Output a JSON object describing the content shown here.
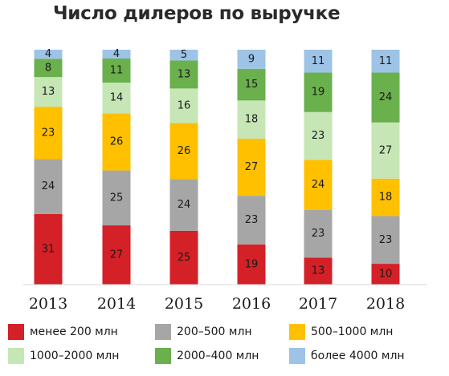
{
  "chart_data": {
    "type": "bar",
    "stacked": true,
    "title": "Число дилеров по выручке",
    "categories": [
      "2013",
      "2014",
      "2015",
      "2016",
      "2017",
      "2018"
    ],
    "series": [
      {
        "name": "менее 200 млн",
        "color": "#d42027",
        "values": [
          31,
          27,
          25,
          19,
          13,
          10
        ]
      },
      {
        "name": "200–500 млн",
        "color": "#a6a6a6",
        "values": [
          24,
          25,
          24,
          23,
          23,
          23
        ]
      },
      {
        "name": "500–1000 млн",
        "color": "#ffc000",
        "values": [
          23,
          26,
          26,
          27,
          24,
          18
        ]
      },
      {
        "name": "1000–2000 млн",
        "color": "#c7e6b5",
        "values": [
          13,
          14,
          16,
          18,
          23,
          27
        ]
      },
      {
        "name": "2000–400 млн",
        "color": "#6ab04c",
        "values": [
          8,
          11,
          13,
          15,
          19,
          24
        ]
      },
      {
        "name": "более 4000 млн",
        "color": "#9dc3e6",
        "values": [
          4,
          4,
          5,
          9,
          11,
          11
        ]
      }
    ],
    "grid": false,
    "legend_position": "bottom"
  }
}
